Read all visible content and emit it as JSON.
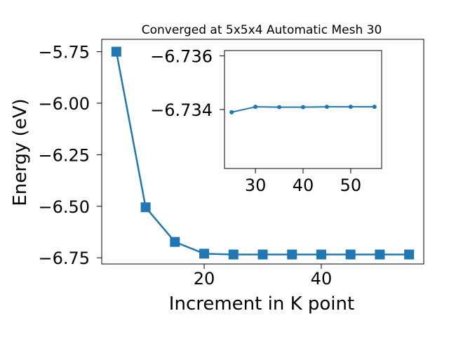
{
  "chart_data": [
    {
      "type": "line",
      "title": "Converged at 5x5x4 Automatic Mesh 30",
      "xlabel": "Increment in K point",
      "ylabel": "Energy (eV)",
      "x": [
        5,
        10,
        15,
        20,
        25,
        30,
        35,
        40,
        45,
        50,
        55
      ],
      "series": [
        {
          "values": [
            -5.75,
            -6.505,
            -6.673,
            -6.73,
            -6.734,
            -6.734,
            -6.734,
            -6.734,
            -6.734,
            -6.734,
            -6.734
          ]
        }
      ],
      "xlim": [
        2.5,
        57.5
      ],
      "ylim": [
        -6.78,
        -5.69
      ],
      "xticks": [
        20,
        40
      ],
      "xtick_labels": [
        "20",
        "40"
      ],
      "yticks": [
        -5.75,
        -6.0,
        -6.25,
        -6.5,
        -6.75
      ],
      "ytick_labels": [
        "−5.75",
        "−6.00",
        "−6.25",
        "−6.50",
        "−6.75"
      ],
      "marker": "square",
      "color": "#1f77b4",
      "grid": false
    },
    {
      "type": "line",
      "title": "",
      "x": [
        25,
        30,
        35,
        40,
        45,
        50,
        55
      ],
      "series": [
        {
          "values": [
            -6.7339,
            -6.7341,
            -6.73409,
            -6.73409,
            -6.7341,
            -6.7341,
            -6.7341
          ]
        }
      ],
      "xlim": [
        23.5,
        56.5
      ],
      "ylim": [
        -6.7318,
        -6.7362
      ],
      "xticks": [
        30,
        40,
        50
      ],
      "xtick_labels": [
        "30",
        "40",
        "50"
      ],
      "yticks": [
        -6.734,
        -6.736
      ],
      "ytick_labels": [
        "−6.734",
        "−6.736"
      ],
      "marker": "circle",
      "color": "#1f77b4",
      "grid": false
    }
  ]
}
